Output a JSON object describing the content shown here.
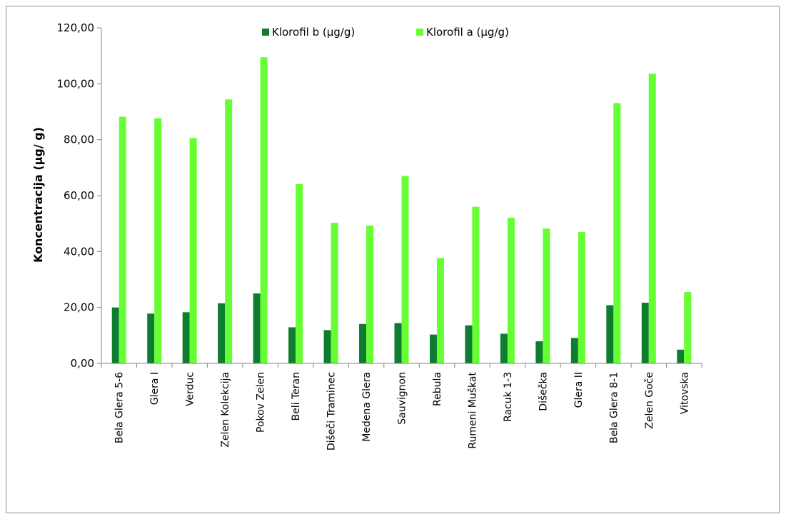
{
  "chart_data": {
    "type": "bar",
    "title": "",
    "xlabel": "",
    "ylabel": "Koncentracija (µg/ g)",
    "ylim": [
      0,
      120
    ],
    "yticks": [
      "0,00",
      "20,00",
      "40,00",
      "60,00",
      "80,00",
      "100,00",
      "120,00"
    ],
    "grid": false,
    "legend_position": "top",
    "categories": [
      "Bela Glera 5-6",
      "Glera I",
      "Verduc",
      "Zelen Kolekcija",
      "Pokov Zelen",
      "Beli Teran",
      "Dišeči Traminec",
      "Medena Glera",
      "Sauvignon",
      "Rebula",
      "Rumeni Muškat",
      "Racuk 1-3",
      "Dišečka",
      "Glera II",
      "Bela Glera 8-1",
      "Zelen Goče",
      "Vitovska"
    ],
    "series": [
      {
        "name": "Klorofil b (µg/g)",
        "color": "#0f7d30",
        "values": [
          20.0,
          17.8,
          18.3,
          21.5,
          25.0,
          12.9,
          11.9,
          14.1,
          14.4,
          10.3,
          13.6,
          10.6,
          7.9,
          9.1,
          20.8,
          21.7,
          4.9
        ]
      },
      {
        "name": "Klorofil a (µg/g)",
        "color": "#66ff33",
        "values": [
          88.2,
          87.7,
          80.6,
          94.4,
          109.5,
          64.1,
          50.3,
          49.3,
          67.0,
          37.7,
          56.0,
          52.1,
          48.2,
          47.0,
          93.1,
          103.6,
          25.5
        ]
      }
    ]
  }
}
